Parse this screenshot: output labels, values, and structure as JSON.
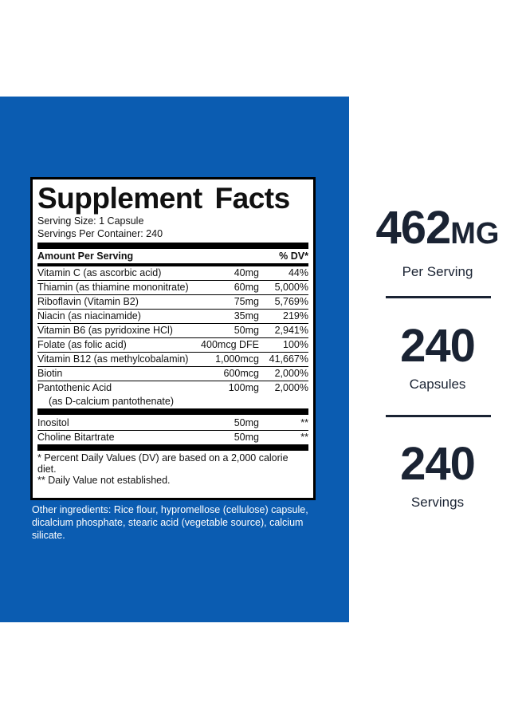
{
  "facts": {
    "title": "Supplement Facts",
    "serving_size": "Serving Size: 1 Capsule",
    "servings_per_container": "Servings Per Container: 240",
    "amount_header": "Amount Per Serving",
    "dv_header": "% DV*",
    "rows": [
      {
        "name": "Vitamin C (as ascorbic acid)",
        "amount": "40mg",
        "dv": "44%"
      },
      {
        "name": "Thiamin (as thiamine mononitrate)",
        "amount": "60mg",
        "dv": "5,000%"
      },
      {
        "name": "Riboflavin (Vitamin B2)",
        "amount": "75mg",
        "dv": "5,769%"
      },
      {
        "name": "Niacin (as niacinamide)",
        "amount": "35mg",
        "dv": "219%"
      },
      {
        "name": "Vitamin B6 (as pyridoxine HCl)",
        "amount": "50mg",
        "dv": "2,941%"
      },
      {
        "name": "Folate (as folic acid)",
        "amount": "400mcg DFE",
        "dv": "100%"
      },
      {
        "name": "Vitamin B12 (as methylcobalamin)",
        "amount": "1,000mcg",
        "dv": "41,667%"
      },
      {
        "name": "Biotin",
        "amount": "600mcg",
        "dv": "2,000%"
      },
      {
        "name": "Pantothenic Acid",
        "name2": "(as D-calcium pantothenate)",
        "amount": "100mg",
        "dv": "2,000%"
      }
    ],
    "rows2": [
      {
        "name": "Inositol",
        "amount": "50mg",
        "dv": "**"
      },
      {
        "name": "Choline Bitartrate",
        "amount": "50mg",
        "dv": "**"
      }
    ],
    "footnote1": "* Percent Daily Values (DV) are based on a 2,000 calorie diet.",
    "footnote2": "** Daily Value not established."
  },
  "other_ingredients": "Other ingredients: Rice flour, hypromellose (cellulose) capsule, dicalcium phosphate, stearic acid (vegetable source), calcium silicate.",
  "stats": {
    "per_serving_value": "462",
    "per_serving_unit": "MG",
    "per_serving_label": "Per Serving",
    "capsules_value": "240",
    "capsules_label": "Capsules",
    "servings_value": "240",
    "servings_label": "Servings"
  },
  "colors": {
    "panel_blue": "#0b5cb1",
    "stat_text": "#1a2333"
  }
}
